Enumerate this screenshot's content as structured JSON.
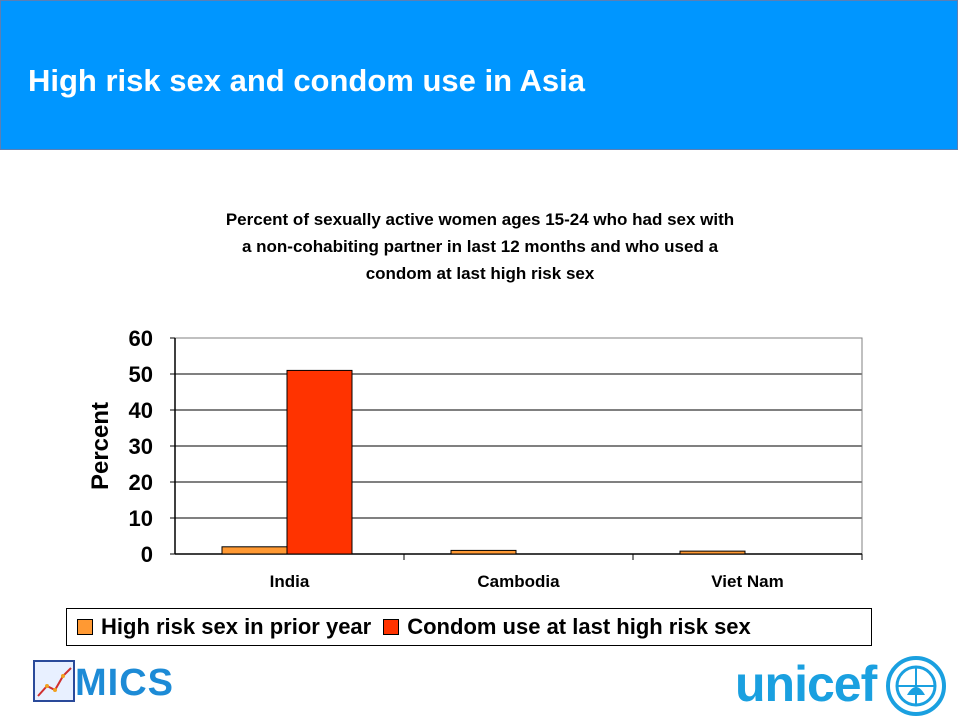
{
  "header": {
    "title": "High risk sex and condom use in Asia"
  },
  "logos": {
    "mics": "MICS",
    "unicef": "unicef"
  },
  "colors": {
    "header_bg": "#0096ff",
    "series1": "#ff9933",
    "series2": "#ff3300"
  },
  "chart_data": {
    "type": "bar",
    "title_lines": [
      "Percent of sexually active women ages 15-24 who had sex with",
      "a non-cohabiting partner in last 12 months and who used a",
      "condom at last high risk sex"
    ],
    "categories": [
      "India",
      "Cambodia",
      "Viet Nam"
    ],
    "series": [
      {
        "name": "High risk sex in prior year",
        "values": [
          2,
          1,
          0.8
        ],
        "color": "#ff9933"
      },
      {
        "name": "Condom use at last high risk sex",
        "values": [
          51,
          0,
          0
        ],
        "color": "#ff3300"
      }
    ],
    "ylabel": "Percent",
    "ylim": [
      0,
      60
    ],
    "yticks": [
      0,
      10,
      20,
      30,
      40,
      50,
      60
    ],
    "grid": true,
    "legend_position": "bottom"
  }
}
